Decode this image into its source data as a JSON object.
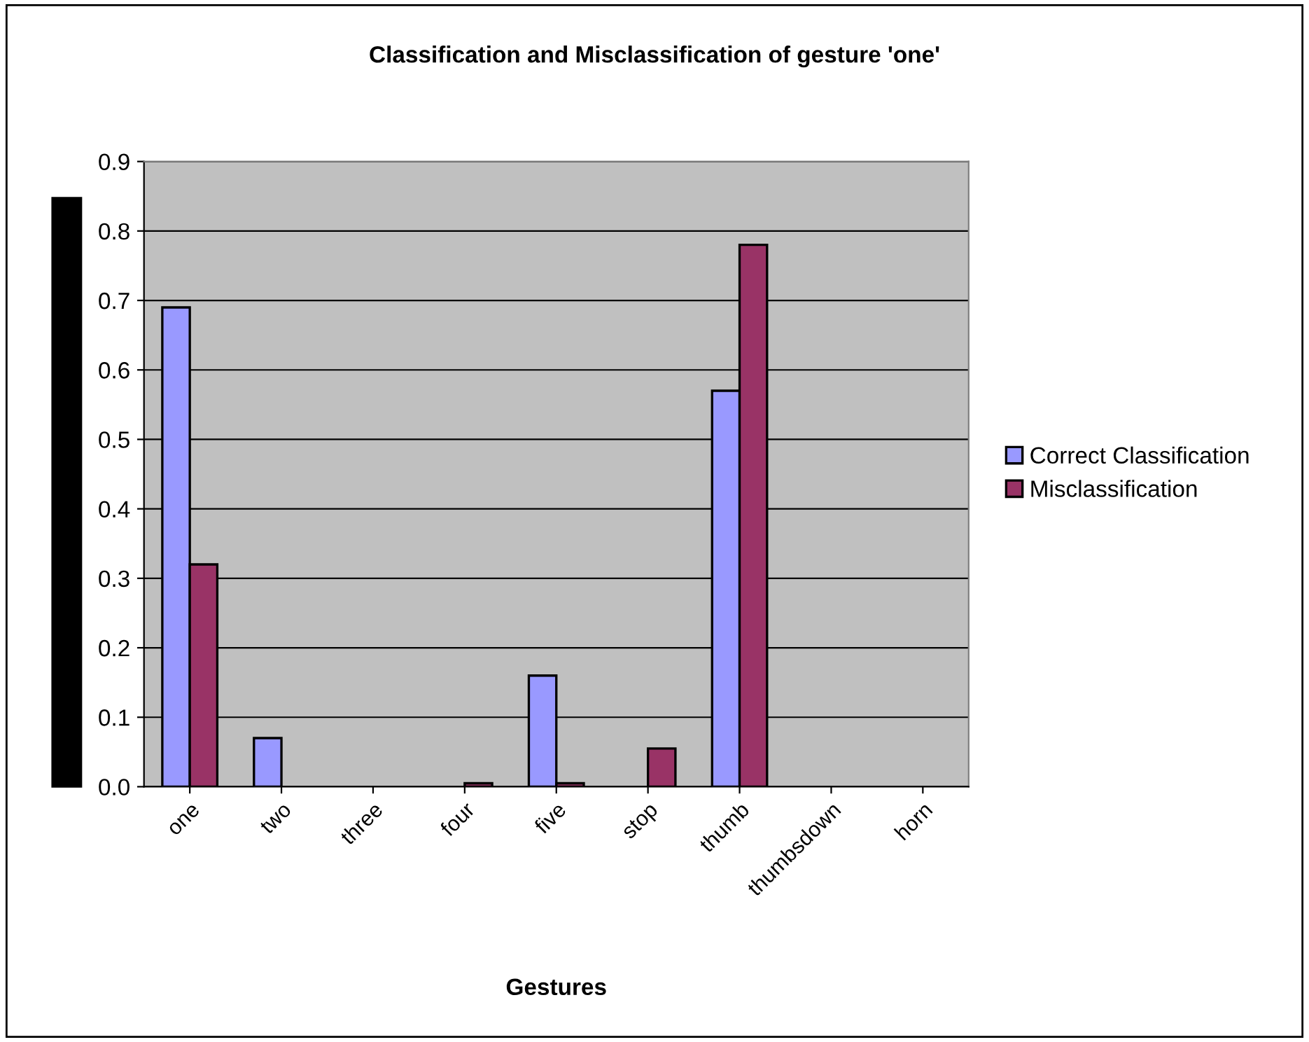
{
  "chart_data": {
    "type": "bar",
    "title": "Classification and Misclassification of gesture 'one'",
    "xlabel": "Gestures",
    "categories": [
      "one",
      "two",
      "three",
      "four",
      "five",
      "stop",
      "thumb",
      "thumbsdown",
      "horn"
    ],
    "series": [
      {
        "name": "Correct Classification",
        "color": "#9999ff",
        "values": [
          0.69,
          0.07,
          0,
          0,
          0.16,
          0,
          0.57,
          0,
          0
        ]
      },
      {
        "name": "Misclassification",
        "color": "#993366",
        "values": [
          0.32,
          0,
          0,
          0.005,
          0.005,
          0.055,
          0.78,
          0,
          0
        ]
      }
    ],
    "ylim": [
      0,
      0.9
    ],
    "yticks": [
      {
        "value": 0,
        "label": "0.0"
      },
      0.1,
      0.2,
      0.3,
      0.4,
      0.5,
      0.6,
      0.7,
      0.8,
      0.9
    ],
    "grid": "y",
    "legend": "right"
  }
}
